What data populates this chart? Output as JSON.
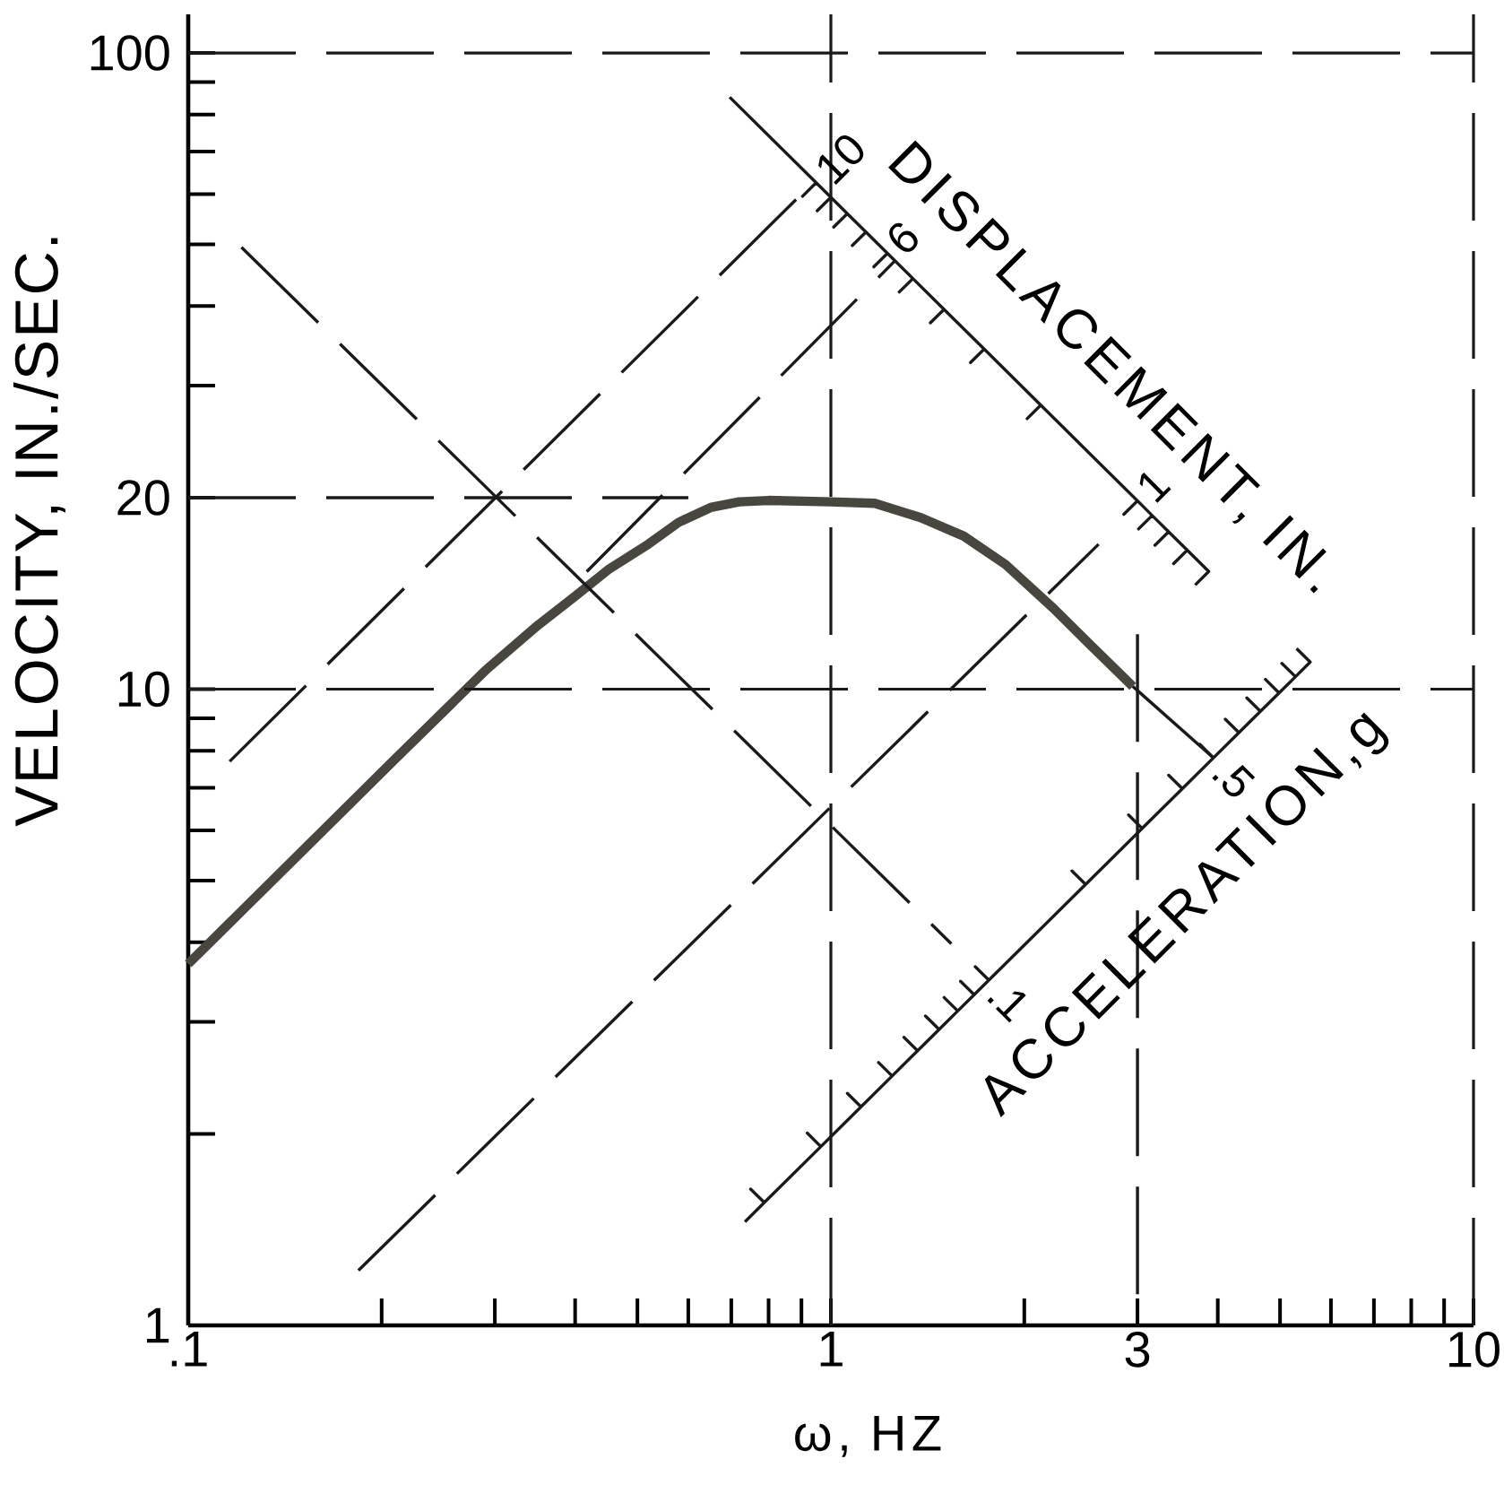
{
  "chart_data": {
    "type": "line",
    "log": "xy",
    "xlabel": "ω, HZ",
    "ylabel": "VELOCITY, IN./SEC.",
    "xlim": [
      0.1,
      10
    ],
    "ylim": [
      1,
      115
    ],
    "xticks": [
      {
        "value": 0.1,
        "label": ".1"
      },
      {
        "value": 0.2,
        "label": null
      },
      {
        "value": 0.3,
        "label": null
      },
      {
        "value": 0.4,
        "label": null
      },
      {
        "value": 0.5,
        "label": null
      },
      {
        "value": 0.6,
        "label": null
      },
      {
        "value": 0.7,
        "label": null
      },
      {
        "value": 0.8,
        "label": null
      },
      {
        "value": 0.9,
        "label": null
      },
      1,
      {
        "value": 2,
        "label": null
      },
      3,
      {
        "value": 4,
        "label": null
      },
      {
        "value": 5,
        "label": null
      },
      {
        "value": 6,
        "label": null
      },
      {
        "value": 7,
        "label": null
      },
      {
        "value": 8,
        "label": null
      },
      {
        "value": 9,
        "label": null
      },
      10
    ],
    "yticks": [
      1,
      {
        "value": 2,
        "label": null
      },
      {
        "value": 3,
        "label": null
      },
      {
        "value": 4,
        "label": null
      },
      {
        "value": 5,
        "label": null
      },
      {
        "value": 6,
        "label": null
      },
      {
        "value": 7,
        "label": null
      },
      {
        "value": 8,
        "label": null
      },
      {
        "value": 9,
        "label": null
      },
      10,
      20,
      {
        "value": 30,
        "label": null
      },
      {
        "value": 40,
        "label": null
      },
      {
        "value": 50,
        "label": null
      },
      {
        "value": 60,
        "label": null
      },
      {
        "value": 70,
        "label": null
      },
      {
        "value": 80,
        "label": null
      },
      {
        "value": 90,
        "label": null
      },
      100
    ],
    "series": [
      {
        "color": "#47473f",
        "line_style": "solid",
        "x": [
          0.1,
          0.15,
          0.21,
          0.29,
          0.35,
          0.4,
          0.45,
          0.52,
          0.58,
          0.65,
          0.72,
          0.8,
          1.0,
          1.17,
          1.38,
          1.61,
          1.87,
          2.22,
          2.52,
          2.95
        ],
        "values": [
          3.7,
          5.55,
          7.77,
          10.7,
          12.6,
          14.0,
          15.4,
          16.9,
          18.3,
          19.3,
          19.7,
          19.8,
          19.7,
          19.6,
          18.6,
          17.4,
          15.7,
          13.4,
          11.8,
          10.1
        ]
      },
      {
        "color": "#1a1a1a",
        "line_style": "dashed",
        "x": [
          0.116,
          0.9
        ],
        "values": [
          7.7,
          60
        ]
      },
      {
        "color": "#1a1a1a",
        "line_style": "dashed",
        "x": [
          0.417,
          1.26
        ],
        "values": [
          15.3,
          47.2
        ]
      },
      {
        "color": "#1a1a1a",
        "line_style": "dashed",
        "x": [
          0.184,
          2.61
        ],
        "values": [
          1.22,
          16.9
        ]
      },
      {
        "color": "#1a1a1a",
        "line_style": "dashed",
        "x": [
          0.121,
          1.54
        ],
        "values": [
          49.5,
          3.98
        ]
      },
      {
        "color": "#1a1a1a",
        "line_style": "dashed",
        "x": [
          2.95,
          3.94
        ],
        "values": [
          10.1,
          7.8
        ]
      },
      {
        "color": "#1a1a1a",
        "line_style": "dashed",
        "x": [
          0.1,
          0.6
        ],
        "values": [
          20,
          20
        ]
      },
      {
        "color": "#1a1a1a",
        "line_style": "dashed",
        "x": [
          3,
          3
        ],
        "values": [
          12.2,
          1
        ]
      },
      {
        "color": "#1a1a1a",
        "line_style": "solid",
        "x": [
          0.696,
          0.9487,
          0.9035,
          0.9487,
          1.0,
          0.9524,
          1.0,
          1.0607,
          1.0102,
          1.0607,
          1.1339,
          1.0799,
          1.1339,
          1.2247,
          1.1664,
          1.2247,
          1.3416,
          1.2777,
          1.3416,
          1.5,
          1.4286,
          1.5,
          1.7321,
          1.6496,
          1.7321,
          2.1213,
          2.0203,
          2.1213,
          3.0,
          2.8571,
          3.0,
          3.1623,
          3.0117,
          3.1623,
          3.3541,
          3.1944,
          3.3541,
          3.5857,
          3.415,
          3.5857,
          3.873,
          3.6886
        ],
        "values": [
          85.2,
          62.51,
          59.53,
          62.51,
          59.3,
          56.48,
          59.3,
          55.91,
          53.25,
          55.91,
          52.3,
          49.81,
          52.3,
          48.42,
          46.11,
          48.42,
          44.2,
          42.1,
          44.2,
          39.53,
          37.65,
          39.53,
          34.24,
          32.61,
          34.24,
          27.95,
          26.62,
          27.95,
          19.77,
          18.83,
          19.77,
          18.75,
          17.86,
          18.75,
          17.68,
          16.84,
          17.68,
          16.54,
          15.75,
          16.54,
          15.31,
          14.58
        ]
      },
      {
        "color": "#1a1a1a",
        "line_style": "solid",
        "x": [
          0.735,
          0.7878,
          0.7503,
          0.7878,
          0.9648,
          0.9189,
          0.9648,
          1.1141,
          1.061,
          1.1141,
          1.2456,
          1.1863,
          1.2456,
          1.3645,
          1.2995,
          1.3645,
          1.4738,
          1.4036,
          1.4738,
          1.5756,
          1.5006,
          1.5756,
          1.6711,
          1.5915,
          1.6711,
          1.7615,
          1.6776,
          1.7615,
          2.4912,
          2.3726,
          2.4912,
          3.0511,
          2.9058,
          3.0511,
          3.5231,
          3.3553,
          3.5231,
          3.9389,
          3.7513,
          3.9389,
          4.3148,
          4.1093,
          4.3148,
          4.6606,
          4.4387,
          4.6606,
          4.9824,
          4.7451,
          4.9824,
          5.2846,
          5.033,
          5.2846,
          5.5705,
          5.3052
        ],
        "values": [
          1.455,
          1.56,
          1.638,
          1.56,
          1.91,
          2.006,
          1.91,
          2.206,
          2.316,
          2.206,
          2.466,
          2.589,
          2.466,
          2.702,
          2.837,
          2.702,
          2.918,
          3.064,
          2.918,
          3.12,
          3.276,
          3.12,
          3.309,
          3.474,
          3.309,
          3.488,
          3.662,
          3.488,
          4.933,
          5.18,
          4.933,
          6.041,
          6.343,
          6.041,
          6.976,
          7.325,
          6.976,
          7.799,
          8.189,
          7.799,
          8.543,
          8.97,
          8.543,
          9.228,
          9.689,
          9.228,
          9.865,
          10.36,
          9.865,
          10.46,
          10.98,
          10.46,
          11.03,
          11.58
        ]
      }
    ],
    "ref_lines": [
      {
        "axis": "y",
        "value": 10,
        "line_style": "dashed",
        "color": "#1a1a1a"
      },
      {
        "axis": "y",
        "value": 100,
        "line_style": "dashed",
        "color": "#1a1a1a"
      },
      {
        "axis": "x",
        "value": 1,
        "line_style": "dashed",
        "color": "#1a1a1a"
      },
      {
        "axis": "x",
        "value": 10,
        "line_style": "dashed",
        "color": "#1a1a1a"
      }
    ],
    "annotations": [
      {
        "text": "DISPLACEMENT, IN.",
        "x": 2.35,
        "y": 25.3
      },
      {
        "text": "10",
        "x": 0.9487,
        "y": 62.51
      },
      {
        "text": "6",
        "x": 1.2247,
        "y": 48.42
      },
      {
        "text": "1",
        "x": 3.0,
        "y": 19.77
      },
      {
        "text": "ACCELERATION,g",
        "x": 2.655,
        "y": 5.22
      },
      {
        "text": ".1",
        "x": 1.7615,
        "y": 3.488
      },
      {
        "text": ".5",
        "x": 3.9389,
        "y": 7.799
      }
    ]
  }
}
